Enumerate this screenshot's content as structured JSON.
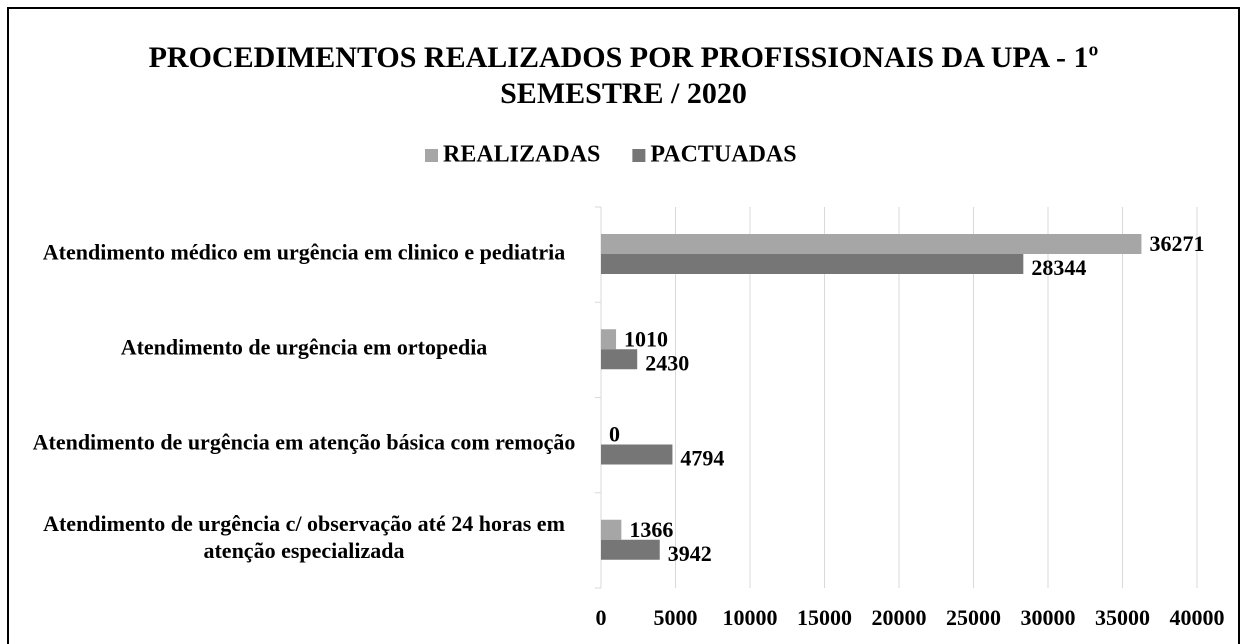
{
  "chart_data": {
    "type": "hbar",
    "title": "PROCEDIMENTOS REALIZADOS POR PROFISSIONAIS DA UPA - 1º SEMESTRE / 2020",
    "categories": [
      "Atendimento médico em urgência em clinico e pediatria",
      "Atendimento de urgência em ortopedia",
      "Atendimento de urgência em atenção básica com remoção",
      "Atendimento de urgência c/ observação até 24 horas em atenção especializada"
    ],
    "series": [
      {
        "name": "REALIZADAS",
        "color": "#a6a6a6",
        "values": [
          36271,
          1010,
          0,
          1366
        ]
      },
      {
        "name": "PACTUADAS",
        "color": "#767676",
        "values": [
          28344,
          2430,
          4794,
          3942
        ]
      }
    ],
    "xlim": [
      0,
      40000
    ],
    "xticks": [
      0,
      5000,
      10000,
      15000,
      20000,
      25000,
      30000,
      35000,
      40000
    ],
    "grid": true,
    "legend": "top"
  }
}
